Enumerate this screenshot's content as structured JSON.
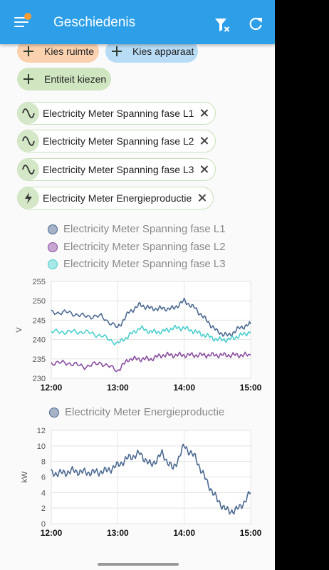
{
  "appbar": {
    "title": "Geschiedenis"
  },
  "filters": {
    "area": "Kies ruimte",
    "device": "Kies apparaat",
    "entity": "Entiteit kiezen"
  },
  "entities": [
    {
      "label": "Electricity Meter Spanning fase L1",
      "icon": "sine-wave-icon"
    },
    {
      "label": "Electricity Meter Spanning fase L2",
      "icon": "sine-wave-icon"
    },
    {
      "label": "Electricity Meter Spanning fase L3",
      "icon": "sine-wave-icon"
    },
    {
      "label": "Electricity Meter Energieproductie",
      "icon": "lightning-bolt-icon"
    }
  ],
  "colors": {
    "appbar": "#2d9fe8",
    "l1": "#4d6a92",
    "l2": "#8a4fa0",
    "l3": "#4ccfcf",
    "energy": "#4d6a92"
  },
  "chart_data": [
    {
      "type": "line",
      "ylabel": "V",
      "ylim": [
        230,
        255
      ],
      "yticks": [
        "230",
        "235",
        "240",
        "245",
        "250",
        "255"
      ],
      "xticks": [
        "12:00",
        "13:00",
        "14:00",
        "15:00"
      ],
      "x": [
        "12:00",
        "12:15",
        "12:30",
        "12:45",
        "13:00",
        "13:10",
        "13:20",
        "13:30",
        "13:40",
        "13:50",
        "14:00",
        "14:10",
        "14:20",
        "14:30",
        "14:40",
        "14:50",
        "15:00"
      ],
      "series": [
        {
          "name": "Electricity Meter Spanning fase L1",
          "values": [
            247,
            247,
            246,
            246,
            243,
            247,
            249,
            248,
            248,
            248,
            250,
            248,
            245,
            242,
            241,
            243,
            244
          ]
        },
        {
          "name": "Electricity Meter Spanning fase L2",
          "values": [
            234,
            234,
            233,
            234,
            232,
            235,
            235,
            235,
            236,
            236,
            236,
            236,
            236,
            236,
            236,
            236,
            236
          ]
        },
        {
          "name": "Electricity Meter Spanning fase L3",
          "values": [
            242,
            242,
            242,
            241,
            239,
            241,
            243,
            242,
            242,
            243,
            243,
            242,
            241,
            240,
            240,
            241,
            242
          ]
        }
      ]
    },
    {
      "type": "line",
      "ylabel": "kW",
      "ylim": [
        0,
        12
      ],
      "yticks": [
        "0",
        "2",
        "4",
        "6",
        "8",
        "10",
        "12"
      ],
      "xticks": [
        "12:00",
        "13:00",
        "14:00",
        "15:00"
      ],
      "x": [
        "12:00",
        "12:10",
        "12:20",
        "12:30",
        "12:40",
        "12:50",
        "13:00",
        "13:10",
        "13:20",
        "13:30",
        "13:40",
        "13:50",
        "14:00",
        "14:10",
        "14:20",
        "14:30",
        "14:40",
        "14:50",
        "15:00"
      ],
      "series": [
        {
          "name": "Electricity Meter Energieproductie",
          "values": [
            6.5,
            6.5,
            6.8,
            6.6,
            6.6,
            6.8,
            7.5,
            8.5,
            9.0,
            7.5,
            9.0,
            7.0,
            10.0,
            8.5,
            5.5,
            3.0,
            1.5,
            2.0,
            4.0
          ]
        }
      ]
    }
  ]
}
